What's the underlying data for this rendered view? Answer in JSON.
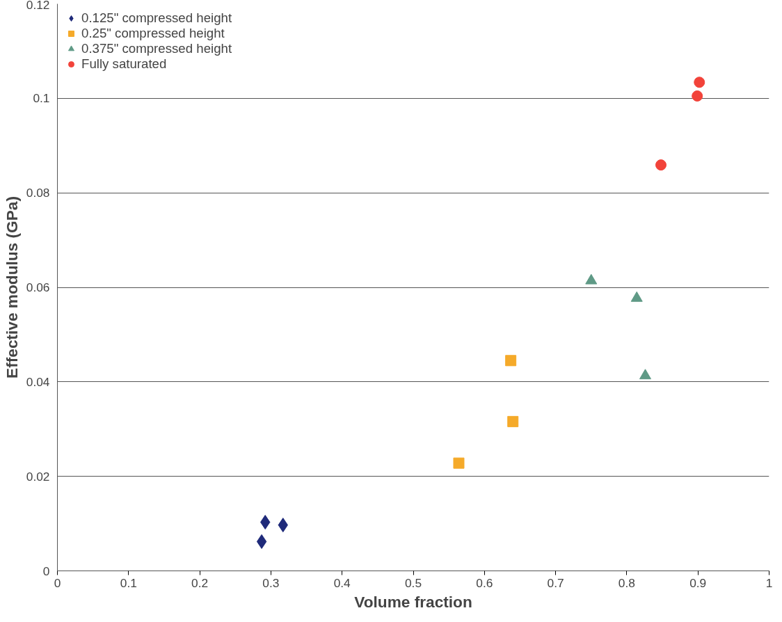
{
  "chart_data": {
    "type": "scatter",
    "xlabel": "Volume fraction",
    "ylabel": "Effective modulus (GPa)",
    "xlim": [
      0,
      1
    ],
    "ylim": [
      0,
      0.12
    ],
    "xticks": [
      0,
      0.1,
      0.2,
      0.3,
      0.4,
      0.5,
      0.6,
      0.7,
      0.8,
      0.9,
      1
    ],
    "yticks": [
      0,
      0.02,
      0.04,
      0.06,
      0.08,
      0.1,
      0.12
    ],
    "grid": "y",
    "legend": "top left",
    "series": [
      {
        "name": "0.125\" compressed height",
        "color": "#1f2a7a",
        "marker": "diamond",
        "x": [
          0.287,
          0.292,
          0.317
        ],
        "values": [
          0.0062,
          0.0103,
          0.0097
        ]
      },
      {
        "name": "0.25\" compressed height",
        "color": "#f5aa2a",
        "marker": "square",
        "x": [
          0.564,
          0.637,
          0.64
        ],
        "values": [
          0.0228,
          0.0445,
          0.0316
        ]
      },
      {
        "name": "0.375\" compressed height",
        "color": "#5f9a86",
        "marker": "triangle",
        "x": [
          0.75,
          0.814,
          0.826
        ],
        "values": [
          0.0614,
          0.0577,
          0.0413
        ]
      },
      {
        "name": "Fully saturated",
        "color": "#f2433a",
        "marker": "circle",
        "x": [
          0.848,
          0.899,
          0.902
        ],
        "values": [
          0.0859,
          0.1005,
          0.1034
        ]
      }
    ]
  }
}
